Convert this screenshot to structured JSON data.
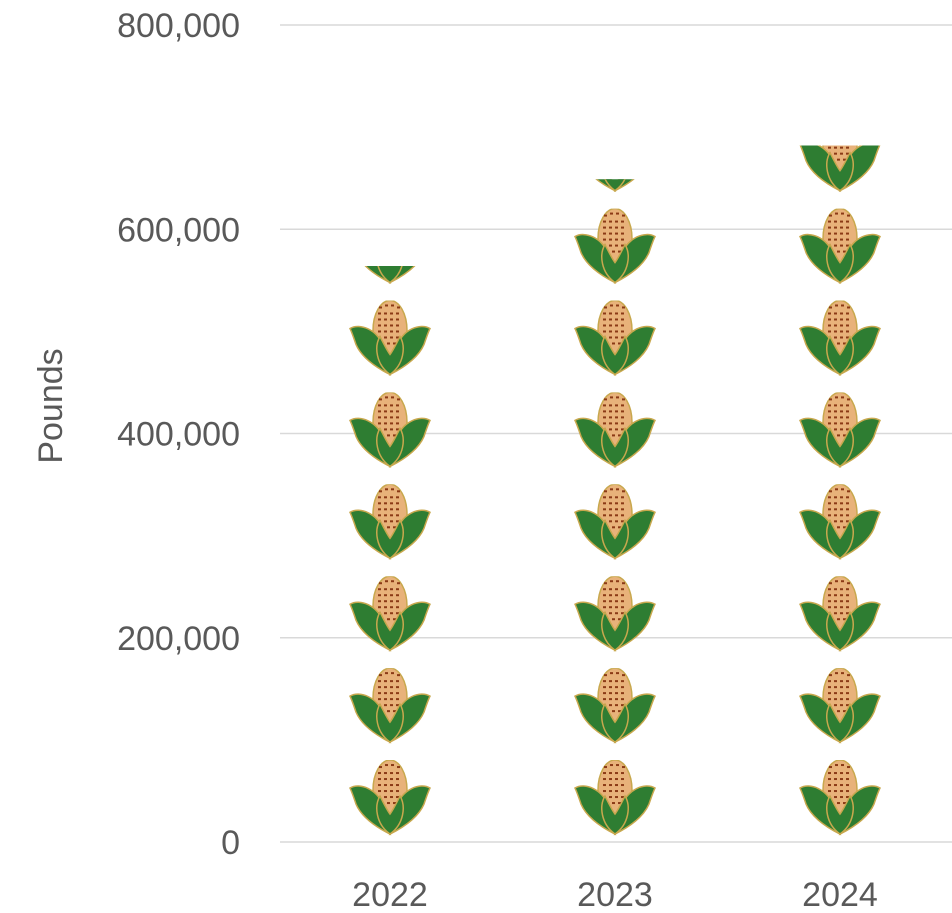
{
  "chart_data": {
    "type": "bar",
    "style": "pictograph",
    "icon": "corn-cob-icon",
    "categories": [
      "2022",
      "2023",
      "2024"
    ],
    "values": [
      564000,
      649000,
      682000
    ],
    "ylabel": "Pounds",
    "xlabel": "",
    "title": "",
    "ylim": [
      0,
      800000
    ],
    "yticks": [
      0,
      200000,
      400000,
      600000,
      800000
    ],
    "ytick_labels": [
      "0",
      "200,000",
      "400,000",
      "600,000",
      "800,000"
    ],
    "units_per_icon": 90000,
    "grid": true,
    "legend": "none",
    "colors": {
      "leaf": "#2e7d32",
      "leaf_outline": "#c8a84e",
      "husk": "#e8b27a",
      "kernel": "#8b3a16",
      "gridline": "#d9d9d9",
      "text": "#595959"
    }
  }
}
